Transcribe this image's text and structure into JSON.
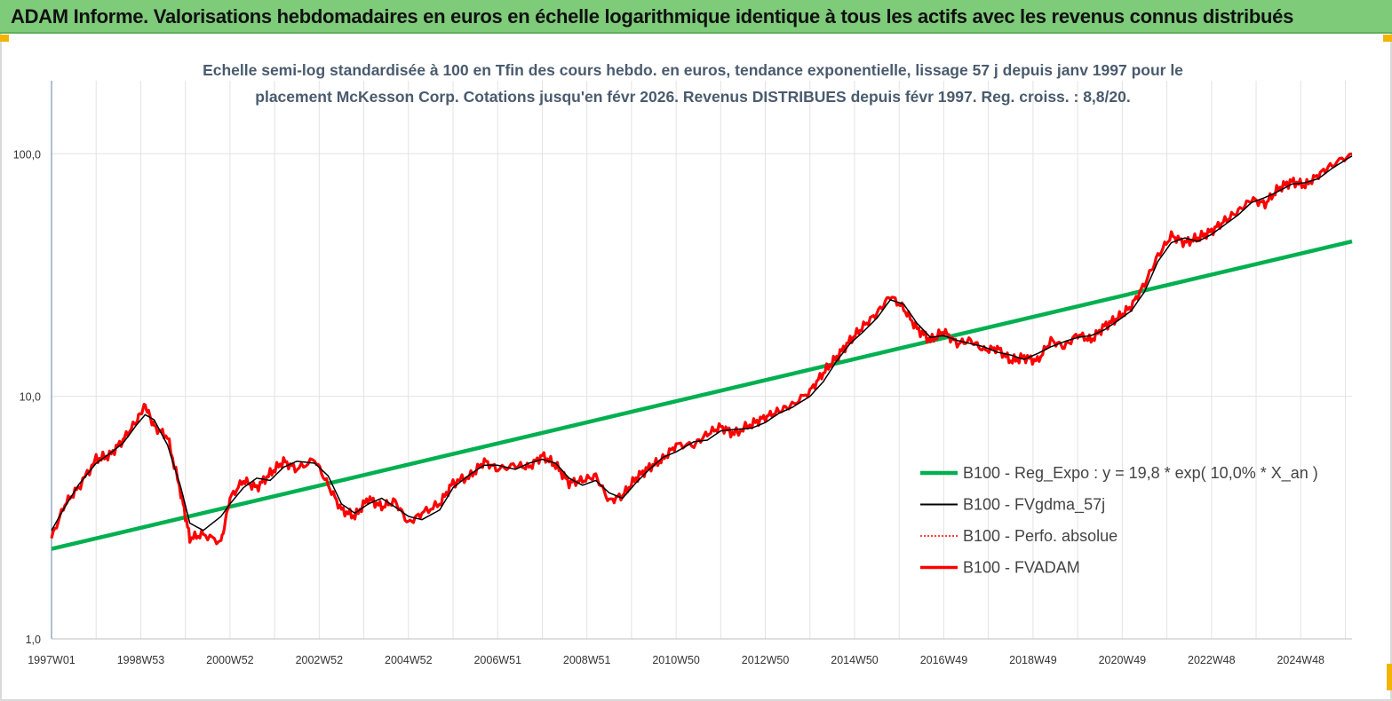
{
  "header": {
    "title": "ADAM Informe. Valorisations hebdomadaires en euros en échelle logarithmique identique à tous les actifs avec les revenus connus distribués"
  },
  "chart_data": {
    "type": "line",
    "title_line1": "Echelle semi-log standardisée à 100 en Tfin des cours hebdo. en euros, tendance exponentielle, lissage 57 j depuis janv 1997 pour le",
    "title_line2": "placement McKesson Corp. Cotations jusqu'en févr 2026. Revenus DISTRIBUES depuis févr 1997. Reg. croiss. : 8,8/20.",
    "y_scale": "log",
    "ylim": [
      1,
      200
    ],
    "y_ticks": [
      {
        "value": 100,
        "label": "100,0"
      },
      {
        "value": 10,
        "label": "10,0"
      },
      {
        "value": 1,
        "label": "1,0"
      }
    ],
    "xlim": [
      1997.0,
      2026.15
    ],
    "x_ticks": [
      {
        "value": 1997.0,
        "label": "1997W01"
      },
      {
        "value": 1999.0,
        "label": "1998W53"
      },
      {
        "value": 2001.0,
        "label": "2000W52"
      },
      {
        "value": 2003.0,
        "label": "2002W52"
      },
      {
        "value": 2005.0,
        "label": "2004W52"
      },
      {
        "value": 2007.0,
        "label": "2006W51"
      },
      {
        "value": 2009.0,
        "label": "2008W51"
      },
      {
        "value": 2011.0,
        "label": "2010W50"
      },
      {
        "value": 2013.0,
        "label": "2012W50"
      },
      {
        "value": 2015.0,
        "label": "2014W50"
      },
      {
        "value": 2017.0,
        "label": "2016W49"
      },
      {
        "value": 2019.0,
        "label": "2018W49"
      },
      {
        "value": 2021.0,
        "label": "2020W49"
      },
      {
        "value": 2023.0,
        "label": "2022W48"
      },
      {
        "value": 2025.0,
        "label": "2024W48"
      }
    ],
    "grid": "vertical",
    "legend_position": "right",
    "series": [
      {
        "name": "B100 - Reg_Expo : y = 19,8 * exp( 10,0% *  X_an )",
        "color": "#00b050",
        "style": "thick",
        "x": [
          1997.0,
          2026.15
        ],
        "values": [
          2.35,
          43.5
        ]
      },
      {
        "name": "B100 - FVgdma_57j",
        "color": "#000000",
        "style": "thin",
        "x": [
          1997.0,
          1997.3,
          1997.6,
          1998.0,
          1998.3,
          1998.6,
          1998.9,
          1999.1,
          1999.3,
          1999.6,
          1999.9,
          2000.1,
          2000.4,
          2000.8,
          2001.0,
          2001.3,
          2001.6,
          2001.9,
          2002.2,
          2002.5,
          2002.9,
          2003.2,
          2003.5,
          2003.8,
          2004.1,
          2004.4,
          2004.7,
          2005.0,
          2005.3,
          2005.7,
          2006.0,
          2006.4,
          2006.7,
          2007.0,
          2007.4,
          2007.7,
          2008.0,
          2008.3,
          2008.6,
          2008.9,
          2009.2,
          2009.5,
          2009.8,
          2010.1,
          2010.4,
          2010.7,
          2011.0,
          2011.4,
          2011.7,
          2012.0,
          2012.3,
          2012.7,
          2013.0,
          2013.3,
          2013.6,
          2014.0,
          2014.3,
          2014.6,
          2014.9,
          2015.2,
          2015.5,
          2015.8,
          2016.1,
          2016.4,
          2016.7,
          2017.0,
          2017.3,
          2017.6,
          2017.9,
          2018.2,
          2018.5,
          2018.8,
          2019.1,
          2019.4,
          2019.7,
          2020.0,
          2020.3,
          2020.6,
          2020.9,
          2021.2,
          2021.5,
          2021.8,
          2022.1,
          2022.4,
          2022.7,
          2023.0,
          2023.3,
          2023.6,
          2023.9,
          2024.2,
          2024.5,
          2024.8,
          2025.1,
          2025.4,
          2025.7,
          2026.15
        ],
        "values": [
          2.8,
          3.5,
          4.3,
          5.3,
          5.8,
          6.4,
          7.6,
          8.4,
          8.0,
          6.3,
          4.2,
          3.0,
          2.8,
          3.2,
          3.6,
          4.2,
          4.6,
          4.5,
          5.1,
          5.4,
          5.3,
          4.7,
          3.6,
          3.3,
          3.6,
          3.8,
          3.5,
          3.2,
          3.1,
          3.4,
          4.2,
          4.8,
          5.2,
          5.2,
          5.0,
          5.3,
          5.5,
          5.3,
          4.6,
          4.3,
          4.5,
          4.0,
          3.8,
          4.4,
          5.0,
          5.6,
          5.9,
          6.5,
          6.6,
          7.2,
          7.3,
          7.4,
          7.8,
          8.5,
          9.0,
          10.0,
          11.5,
          14.0,
          16.5,
          18.5,
          21.0,
          25.0,
          24.0,
          20.0,
          17.5,
          17.8,
          17.0,
          16.5,
          16.0,
          15.2,
          14.8,
          14.2,
          15.0,
          16.0,
          16.8,
          17.5,
          17.8,
          18.8,
          20.5,
          22.5,
          27.0,
          36.0,
          43.0,
          45.0,
          43.5,
          46.5,
          51.0,
          56.0,
          63.0,
          66.0,
          70.0,
          75.0,
          76.0,
          79.0,
          87.0,
          98.0
        ]
      },
      {
        "name": "B100 - Perfo. absolue",
        "color": "#ff0000",
        "style": "dotted",
        "x": [],
        "values": []
      },
      {
        "name": "B100 - FVADAM",
        "color": "#ff0000",
        "style": "thick",
        "x": [
          1997.0,
          1997.3,
          1997.6,
          1998.0,
          1998.3,
          1998.6,
          1998.9,
          1999.1,
          1999.3,
          1999.6,
          1999.9,
          2000.1,
          2000.4,
          2000.8,
          2001.0,
          2001.3,
          2001.6,
          2001.9,
          2002.2,
          2002.5,
          2002.9,
          2003.2,
          2003.5,
          2003.8,
          2004.1,
          2004.4,
          2004.7,
          2005.0,
          2005.3,
          2005.7,
          2006.0,
          2006.4,
          2006.7,
          2007.0,
          2007.4,
          2007.7,
          2008.0,
          2008.3,
          2008.6,
          2008.9,
          2009.2,
          2009.5,
          2009.8,
          2010.1,
          2010.4,
          2010.7,
          2011.0,
          2011.4,
          2011.7,
          2012.0,
          2012.3,
          2012.7,
          2013.0,
          2013.3,
          2013.6,
          2014.0,
          2014.3,
          2014.6,
          2014.9,
          2015.2,
          2015.5,
          2015.8,
          2016.1,
          2016.4,
          2016.7,
          2017.0,
          2017.3,
          2017.6,
          2017.9,
          2018.2,
          2018.5,
          2018.8,
          2019.1,
          2019.4,
          2019.7,
          2020.0,
          2020.3,
          2020.6,
          2020.9,
          2021.2,
          2021.5,
          2021.8,
          2022.1,
          2022.4,
          2022.7,
          2023.0,
          2023.3,
          2023.6,
          2023.9,
          2024.2,
          2024.5,
          2024.8,
          2025.1,
          2025.4,
          2025.7,
          2026.15
        ],
        "values": [
          2.6,
          3.6,
          4.2,
          5.5,
          5.7,
          6.6,
          7.9,
          9.2,
          7.5,
          6.8,
          4.0,
          2.6,
          2.7,
          2.5,
          3.8,
          4.5,
          4.2,
          4.8,
          5.4,
          5.0,
          5.5,
          4.3,
          3.4,
          3.2,
          3.8,
          3.5,
          3.7,
          3.0,
          3.3,
          3.6,
          4.4,
          4.7,
          5.4,
          5.0,
          5.2,
          5.1,
          5.7,
          5.2,
          4.4,
          4.5,
          4.7,
          3.7,
          3.9,
          4.6,
          5.1,
          5.5,
          6.3,
          6.3,
          7.0,
          7.5,
          7.0,
          7.7,
          8.2,
          8.7,
          9.2,
          10.5,
          12.5,
          14.5,
          17.0,
          19.5,
          22.0,
          26.0,
          23.0,
          19.0,
          17.0,
          18.5,
          16.5,
          17.0,
          15.5,
          15.8,
          14.0,
          14.5,
          14.0,
          17.0,
          16.0,
          18.0,
          17.0,
          19.5,
          21.0,
          23.5,
          29.0,
          38.0,
          46.0,
          43.0,
          45.0,
          48.0,
          53.0,
          58.0,
          65.0,
          62.0,
          72.0,
          77.0,
          74.0,
          82.0,
          90.0,
          100.0
        ]
      }
    ]
  }
}
